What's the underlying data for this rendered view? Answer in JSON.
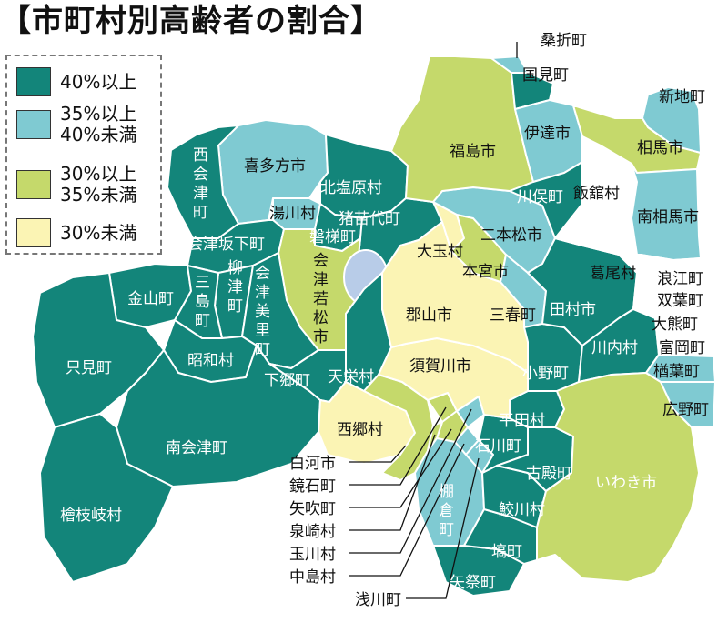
{
  "title": "【市町村別高齢者の割合】",
  "colors": {
    "band_40_plus": "#13857a",
    "band_35_40": "#7fcad2",
    "band_30_35": "#c5d96b",
    "band_under_30": "#fbf4b4",
    "unclassified": "#ffffff",
    "lake": "#b8cce8"
  },
  "legend": [
    {
      "lines": [
        "40%以上"
      ],
      "color": "#13857a"
    },
    {
      "lines": [
        "35%以上",
        "40%未満"
      ],
      "color": "#7fcad2"
    },
    {
      "lines": [
        "30%以上",
        "35%未満"
      ],
      "color": "#c5d96b"
    },
    {
      "lines": [
        "30%未満"
      ],
      "color": "#fbf4b4"
    }
  ],
  "municipalities": [
    {
      "id": "kitakata",
      "name": "喜多方市",
      "band": "35-40"
    },
    {
      "id": "nishiaizu",
      "name": "西会津町",
      "band": "40+"
    },
    {
      "id": "kitashiobara",
      "name": "北塩原村",
      "band": "40+"
    },
    {
      "id": "yugawa",
      "name": "湯川村",
      "band": "35-40"
    },
    {
      "id": "aizubange",
      "name": "会津坂下町",
      "band": "40+"
    },
    {
      "id": "bandai",
      "name": "磐梯町",
      "band": "40+"
    },
    {
      "id": "inawashiro",
      "name": "猪苗代町",
      "band": "40+"
    },
    {
      "id": "aizuwakamatsu",
      "name": "会津若松市",
      "band": "30-35"
    },
    {
      "id": "yanaizu",
      "name": "柳津町",
      "band": "40+"
    },
    {
      "id": "aizumisato",
      "name": "会津美里町",
      "band": "40+"
    },
    {
      "id": "kaneyama",
      "name": "金山町",
      "band": "40+"
    },
    {
      "id": "mishima",
      "name": "三島町",
      "band": "40+"
    },
    {
      "id": "showa",
      "name": "昭和村",
      "band": "40+"
    },
    {
      "id": "tadami",
      "name": "只見町",
      "band": "40+"
    },
    {
      "id": "minamiaizu",
      "name": "南会津町",
      "band": "40+"
    },
    {
      "id": "hinoemata",
      "name": "檜枝岐村",
      "band": "40+"
    },
    {
      "id": "shimogo",
      "name": "下郷町",
      "band": "40+"
    },
    {
      "id": "tenei",
      "name": "天栄村",
      "band": "40+"
    },
    {
      "id": "nishigo",
      "name": "西郷村",
      "band": "under30"
    },
    {
      "id": "shirakawa",
      "name": "白河市",
      "band": "30-35"
    },
    {
      "id": "kagamiishi",
      "name": "鏡石町",
      "band": "30-35"
    },
    {
      "id": "yabuki",
      "name": "矢吹町",
      "band": "30-35"
    },
    {
      "id": "izumizaki",
      "name": "泉崎村",
      "band": "30-35"
    },
    {
      "id": "tamakawa",
      "name": "玉川村",
      "band": "35-40"
    },
    {
      "id": "nakajima",
      "name": "中島村",
      "band": "35-40"
    },
    {
      "id": "asakawa",
      "name": "浅川町",
      "band": "35-40"
    },
    {
      "id": "tanagura",
      "name": "棚倉町",
      "band": "35-40"
    },
    {
      "id": "yamatsuri",
      "name": "矢祭町",
      "band": "40+"
    },
    {
      "id": "hanawa",
      "name": "塙町",
      "band": "40+"
    },
    {
      "id": "samegawa",
      "name": "鮫川村",
      "band": "40+"
    },
    {
      "id": "ishikawa",
      "name": "石川町",
      "band": "40+"
    },
    {
      "id": "furudono",
      "name": "古殿町",
      "band": "40+"
    },
    {
      "id": "hirata",
      "name": "平田村",
      "band": "40+"
    },
    {
      "id": "sukagawa",
      "name": "須賀川市",
      "band": "under30"
    },
    {
      "id": "koriyama",
      "name": "郡山市",
      "band": "under30"
    },
    {
      "id": "otama",
      "name": "大玉村",
      "band": "under30"
    },
    {
      "id": "motomiya",
      "name": "本宮市",
      "band": "30-35"
    },
    {
      "id": "nihonmatsu",
      "name": "二本松市",
      "band": "35-40"
    },
    {
      "id": "miharu",
      "name": "三春町",
      "band": "35-40"
    },
    {
      "id": "ono",
      "name": "小野町",
      "band": "40+"
    },
    {
      "id": "tamura",
      "name": "田村市",
      "band": "40+"
    },
    {
      "id": "kawauchi",
      "name": "川内村",
      "band": "40+"
    },
    {
      "id": "iwaki",
      "name": "いわき市",
      "band": "30-35"
    },
    {
      "id": "fukushima",
      "name": "福島市",
      "band": "30-35"
    },
    {
      "id": "kori",
      "name": "桑折町",
      "band": "35-40"
    },
    {
      "id": "kunimi",
      "name": "国見町",
      "band": "40+"
    },
    {
      "id": "date",
      "name": "伊達市",
      "band": "35-40"
    },
    {
      "id": "kawamata",
      "name": "川俣町",
      "band": "40+"
    },
    {
      "id": "iitate",
      "name": "飯舘村",
      "band": "none"
    },
    {
      "id": "katsurao",
      "name": "葛尾村",
      "band": "none"
    },
    {
      "id": "namie",
      "name": "浪江町",
      "band": "none"
    },
    {
      "id": "futaba",
      "name": "双葉町",
      "band": "none"
    },
    {
      "id": "okuma",
      "name": "大熊町",
      "band": "none"
    },
    {
      "id": "tomioka",
      "name": "富岡町",
      "band": "none"
    },
    {
      "id": "naraha",
      "name": "楢葉町",
      "band": "35-40"
    },
    {
      "id": "hirono",
      "name": "広野町",
      "band": "35-40"
    },
    {
      "id": "minamisoma",
      "name": "南相馬市",
      "band": "35-40"
    },
    {
      "id": "soma",
      "name": "相馬市",
      "band": "30-35"
    },
    {
      "id": "shinchi",
      "name": "新地町",
      "band": "35-40"
    }
  ]
}
